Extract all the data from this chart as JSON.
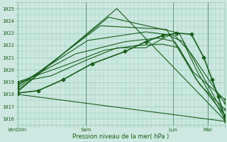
{
  "xlabel": "Pression niveau de la mer( hPa )",
  "ylim": [
    1015.5,
    1025.5
  ],
  "yticks": [
    1016,
    1017,
    1018,
    1019,
    1020,
    1021,
    1022,
    1023,
    1024,
    1025
  ],
  "xtick_labels": [
    "VenDim",
    "Sam",
    "Lun",
    "Mar"
  ],
  "xtick_positions": [
    0.0,
    0.33,
    0.75,
    0.92
  ],
  "bg_color": "#cce8e0",
  "grid_color": "#99ccbb",
  "line_color": "#1a5e1a",
  "figsize": [
    3.2,
    2.0
  ],
  "dpi": 100,
  "lines": [
    {
      "x": [
        0.0,
        1.0
      ],
      "y": [
        1018.0,
        1015.8
      ]
    },
    {
      "x": [
        0.0,
        0.48,
        1.0
      ],
      "y": [
        1018.2,
        1025.0,
        1015.9
      ]
    },
    {
      "x": [
        0.0,
        0.44,
        0.78,
        1.0
      ],
      "y": [
        1018.3,
        1024.3,
        1023.0,
        1016.3
      ]
    },
    {
      "x": [
        0.0,
        0.4,
        0.72,
        0.88,
        1.0
      ],
      "y": [
        1018.5,
        1023.6,
        1023.3,
        1018.8,
        1016.8
      ]
    },
    {
      "x": [
        0.0,
        0.34,
        0.62,
        0.76,
        0.84,
        1.0
      ],
      "y": [
        1018.7,
        1022.4,
        1023.1,
        1022.8,
        1021.3,
        1017.3
      ]
    },
    {
      "x": [
        0.0,
        0.28,
        0.52,
        0.68,
        0.76,
        0.85,
        1.0
      ],
      "y": [
        1018.8,
        1021.3,
        1022.3,
        1022.6,
        1022.3,
        1019.8,
        1017.6
      ]
    },
    {
      "x": [
        0.0,
        0.22,
        0.42,
        0.58,
        0.7,
        0.78,
        0.86,
        1.0
      ],
      "y": [
        1019.0,
        1020.3,
        1021.6,
        1022.0,
        1022.1,
        1021.8,
        1019.3,
        1016.3
      ]
    },
    {
      "x": [
        0.0,
        0.16,
        0.32,
        0.48,
        0.62,
        0.73,
        0.8,
        0.87,
        1.0
      ],
      "y": [
        1019.0,
        1019.5,
        1020.7,
        1021.8,
        1021.8,
        1022.8,
        1022.3,
        1019.8,
        1016.0
      ]
    },
    {
      "x": [
        0.0,
        0.1,
        0.22,
        0.36,
        0.52,
        0.62,
        0.7,
        0.77,
        0.84,
        0.9,
        0.94,
        0.97,
        1.0
      ],
      "y": [
        1018.1,
        1018.3,
        1019.2,
        1020.5,
        1021.5,
        1022.3,
        1022.8,
        1023.0,
        1022.9,
        1021.0,
        1019.2,
        1017.8,
        1016.2
      ],
      "marker": "D",
      "markersize": 2.5,
      "lw": 1.2
    }
  ]
}
